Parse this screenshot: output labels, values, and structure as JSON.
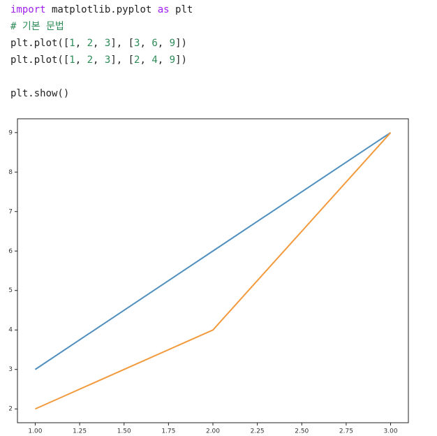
{
  "code": {
    "lines": [
      [
        {
          "text": "import",
          "style": "keyword"
        },
        {
          "text": " matplotlib.pyplot ",
          "style": "plain"
        },
        {
          "text": "as",
          "style": "keyword"
        },
        {
          "text": " plt",
          "style": "plain"
        }
      ],
      [
        {
          "text": "# 기본 문법",
          "style": "comment"
        }
      ],
      [
        {
          "text": "plt.plot([",
          "style": "plain"
        },
        {
          "text": "1",
          "style": "number"
        },
        {
          "text": ", ",
          "style": "plain"
        },
        {
          "text": "2",
          "style": "number"
        },
        {
          "text": ", ",
          "style": "plain"
        },
        {
          "text": "3",
          "style": "number"
        },
        {
          "text": "], [",
          "style": "plain"
        },
        {
          "text": "3",
          "style": "number"
        },
        {
          "text": ", ",
          "style": "plain"
        },
        {
          "text": "6",
          "style": "number"
        },
        {
          "text": ", ",
          "style": "plain"
        },
        {
          "text": "9",
          "style": "number"
        },
        {
          "text": "])",
          "style": "plain"
        }
      ],
      [
        {
          "text": "plt.plot([",
          "style": "plain"
        },
        {
          "text": "1",
          "style": "number"
        },
        {
          "text": ", ",
          "style": "plain"
        },
        {
          "text": "2",
          "style": "number"
        },
        {
          "text": ", ",
          "style": "plain"
        },
        {
          "text": "3",
          "style": "number"
        },
        {
          "text": "], [",
          "style": "plain"
        },
        {
          "text": "2",
          "style": "number"
        },
        {
          "text": ", ",
          "style": "plain"
        },
        {
          "text": "4",
          "style": "number"
        },
        {
          "text": ", ",
          "style": "plain"
        },
        {
          "text": "9",
          "style": "number"
        },
        {
          "text": "])",
          "style": "plain"
        }
      ],
      [
        {
          "text": "plt.show()",
          "style": "plain"
        }
      ]
    ]
  },
  "chart_data": {
    "type": "line",
    "x": [
      1,
      2,
      3
    ],
    "series": [
      {
        "color": "#4f8fbf",
        "values": [
          3,
          6,
          9
        ]
      },
      {
        "color": "#f29a3c",
        "values": [
          2,
          4,
          9
        ]
      }
    ],
    "xlim": [
      0.9,
      3.1
    ],
    "ylim": [
      1.65,
      9.35
    ],
    "xticks": [
      {
        "value": 1,
        "label": "1.00"
      },
      {
        "value": 1.25,
        "label": "1.25"
      },
      {
        "value": 1.5,
        "label": "1.50"
      },
      {
        "value": 1.75,
        "label": "1.75"
      },
      {
        "value": 2,
        "label": "2.00"
      },
      {
        "value": 2.25,
        "label": "2.25"
      },
      {
        "value": 2.5,
        "label": "2.50"
      },
      {
        "value": 2.75,
        "label": "2.75"
      },
      {
        "value": 3,
        "label": "3.00"
      }
    ],
    "yticks": [
      2,
      3,
      4,
      5,
      6,
      7,
      8,
      9
    ],
    "grid": false
  }
}
